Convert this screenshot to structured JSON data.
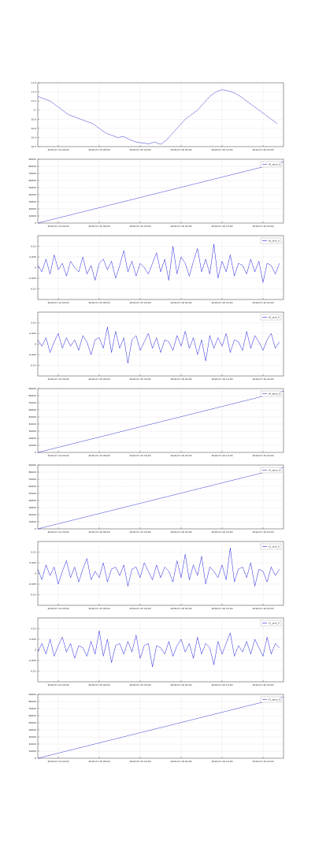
{
  "chart_data": [
    {
      "type": "line",
      "x": [
        0,
        1.5,
        3,
        4.5,
        6,
        7.5,
        9,
        10.5,
        12,
        13.5,
        15,
        16.5,
        18,
        19.5,
        21,
        22.5,
        24,
        25.5,
        27,
        28.5,
        30,
        31.5,
        33,
        34.5,
        36,
        37.5,
        39,
        40.5,
        42,
        43.5,
        45,
        46.5,
        48,
        49.5,
        51,
        52.5,
        54,
        55.5,
        57,
        58.5
      ],
      "series": [
        {
          "color": "#3a3ad6",
          "values": [
            11.3,
            11.25,
            11.2,
            11.1,
            11,
            10.9,
            10.85,
            10.8,
            10.75,
            10.7,
            10.6,
            10.5,
            10.45,
            10.4,
            10.42,
            10.35,
            10.3,
            10.28,
            10.26,
            10.3,
            10.25,
            10.35,
            10.5,
            10.65,
            10.8,
            10.9,
            11,
            11.15,
            11.3,
            11.4,
            11.45,
            11.42,
            11.38,
            11.3,
            11.2,
            11.1,
            11,
            10.9,
            10.8,
            10.7
          ]
        }
      ],
      "xlim": [
        0,
        60
      ],
      "xticks": [
        {
          "value": 5,
          "label": "2016-07-14 20:00"
        },
        {
          "value": 15,
          "label": "2016-07-15 06:00"
        },
        {
          "value": 25,
          "label": "2016-07-15 16:00"
        },
        {
          "value": 35,
          "label": "2016-07-16 02:00"
        },
        {
          "value": 45,
          "label": "2016-07-16 12:00"
        },
        {
          "value": 55,
          "label": "2016-07-16 22:00"
        }
      ],
      "ylim": [
        10.2,
        11.6
      ],
      "yticks": [
        10.2,
        10.4,
        10.6,
        10.8,
        11,
        11.2,
        11.4,
        11.6
      ],
      "grid": true
    },
    {
      "type": "line",
      "x": [
        0,
        60
      ],
      "series": [
        {
          "name": "t0_xpos_0",
          "color": "#3a3ad6",
          "values": [
            0,
            86400
          ]
        }
      ],
      "xlim": [
        0,
        60
      ],
      "xticks": [
        {
          "value": 5,
          "label": "2016-07-14 20:00"
        },
        {
          "value": 15,
          "label": "2016-07-15 06:00"
        },
        {
          "value": 25,
          "label": "2016-07-15 16:00"
        },
        {
          "value": 35,
          "label": "2016-07-16 02:00"
        },
        {
          "value": 45,
          "label": "2016-07-16 12:00"
        },
        {
          "value": 55,
          "label": "2016-07-16 22:00"
        }
      ],
      "ylim": [
        0,
        90000
      ],
      "yticks": [
        0,
        10000,
        20000,
        30000,
        40000,
        50000,
        60000,
        70000,
        80000,
        90000
      ],
      "grid": true,
      "legend": "upper right"
    },
    {
      "type": "line",
      "x": [
        0,
        1,
        2,
        3,
        4,
        5,
        6,
        7,
        8,
        9,
        10,
        11,
        12,
        13,
        14,
        15,
        16,
        17,
        18,
        19,
        20,
        21,
        22,
        23,
        24,
        25,
        26,
        27,
        28,
        29,
        30,
        31,
        32,
        33,
        34,
        35,
        36,
        37,
        38,
        39,
        40,
        41,
        42,
        43,
        44,
        45,
        46,
        47,
        48,
        49,
        50,
        51,
        52,
        53,
        54,
        55,
        56,
        57,
        58,
        59
      ],
      "series": [
        {
          "name": "t0_xrot_0",
          "color": "#2020e0",
          "values": [
            0.001,
            -0.002,
            0.004,
            -0.003,
            0.006,
            -0.001,
            0.002,
            -0.004,
            0.003,
            0,
            -0.002,
            0.005,
            -0.003,
            0.001,
            -0.006,
            0.002,
            0.004,
            -0.001,
            0.003,
            -0.005,
            0.001,
            0.008,
            -0.002,
            0.003,
            -0.004,
            0.002,
            0,
            -0.003,
            0.002,
            0.007,
            -0.002,
            0.004,
            -0.006,
            0.01,
            -0.003,
            0.005,
            0.002,
            -0.004,
            0.003,
            0.009,
            -0.002,
            0.004,
            -0.003,
            0.011,
            -0.005,
            0.003,
            -0.002,
            0.006,
            -0.004,
            0.002,
            0.001,
            -0.003,
            0.004,
            -0.002,
            0.003,
            -0.007,
            0.002,
            0.001,
            -0.003,
            0.002
          ]
        }
      ],
      "xlim": [
        0,
        60
      ],
      "xticks": [
        {
          "value": 5,
          "label": "2016-07-14 20:00"
        },
        {
          "value": 15,
          "label": "2016-07-15 06:00"
        },
        {
          "value": 25,
          "label": "2016-07-15 16:00"
        },
        {
          "value": 35,
          "label": "2016-07-16 02:00"
        },
        {
          "value": 45,
          "label": "2016-07-16 12:00"
        },
        {
          "value": 55,
          "label": "2016-07-16 22:00"
        }
      ],
      "ylim": [
        -0.015,
        0.015
      ],
      "yticks": [
        -0.01,
        -0.005,
        0,
        0.005,
        0.01
      ],
      "grid": true,
      "legend": "upper right"
    },
    {
      "type": "line",
      "x": [
        0,
        1,
        2,
        3,
        4,
        5,
        6,
        7,
        8,
        9,
        10,
        11,
        12,
        13,
        14,
        15,
        16,
        17,
        18,
        19,
        20,
        21,
        22,
        23,
        24,
        25,
        26,
        27,
        28,
        29,
        30,
        31,
        32,
        33,
        34,
        35,
        36,
        37,
        38,
        39,
        40,
        41,
        42,
        43,
        44,
        45,
        46,
        47,
        48,
        49,
        50,
        51,
        52,
        53,
        54,
        55,
        56,
        57,
        58,
        59
      ],
      "series": [
        {
          "name": "t0_yrot_0",
          "color": "#2020e0",
          "values": [
            0.002,
            -0.001,
            0.003,
            -0.004,
            0.001,
            0.005,
            -0.002,
            0.003,
            -0.001,
            0.002,
            -0.003,
            0.004,
            0.001,
            -0.005,
            0.002,
            0.003,
            -0.002,
            0.008,
            -0.004,
            0.006,
            -0.002,
            0.003,
            -0.009,
            0.002,
            0.004,
            -0.003,
            0.001,
            0.005,
            -0.002,
            0.003,
            -0.004,
            0.002,
            0.001,
            -0.003,
            0.004,
            -0.001,
            0.006,
            -0.002,
            0.003,
            -0.005,
            0.002,
            -0.008,
            0.004,
            -0.002,
            0.003,
            -0.001,
            0.005,
            -0.004,
            0.002,
            0.001,
            -0.003,
            0.006,
            -0.002,
            0.004,
            0.001,
            -0.003,
            0.002,
            0.005,
            -0.002,
            0.001
          ]
        }
      ],
      "xlim": [
        0,
        60
      ],
      "xticks": [
        {
          "value": 5,
          "label": "2016-07-14 20:00"
        },
        {
          "value": 15,
          "label": "2016-07-15 06:00"
        },
        {
          "value": 25,
          "label": "2016-07-15 16:00"
        },
        {
          "value": 35,
          "label": "2016-07-16 02:00"
        },
        {
          "value": 45,
          "label": "2016-07-16 12:00"
        },
        {
          "value": 55,
          "label": "2016-07-16 22:00"
        }
      ],
      "ylim": [
        -0.015,
        0.015
      ],
      "yticks": [
        -0.01,
        -0.005,
        0,
        0.005,
        0.01
      ],
      "grid": true,
      "legend": "upper right"
    },
    {
      "type": "line",
      "x": [
        0,
        60
      ],
      "series": [
        {
          "name": "t0_ypos_0",
          "color": "#3a3ad6",
          "values": [
            0,
            86400
          ]
        }
      ],
      "xlim": [
        0,
        60
      ],
      "xticks": [
        {
          "value": 5,
          "label": "2016-07-14 20:00"
        },
        {
          "value": 15,
          "label": "2016-07-15 06:00"
        },
        {
          "value": 25,
          "label": "2016-07-15 16:00"
        },
        {
          "value": 35,
          "label": "2016-07-16 02:00"
        },
        {
          "value": 45,
          "label": "2016-07-16 12:00"
        },
        {
          "value": 55,
          "label": "2016-07-16 22:00"
        }
      ],
      "ylim": [
        0,
        90000
      ],
      "yticks": [
        0,
        10000,
        20000,
        30000,
        40000,
        50000,
        60000,
        70000,
        80000,
        90000
      ],
      "grid": true,
      "legend": "upper right"
    },
    {
      "type": "line",
      "x": [
        0,
        60
      ],
      "series": [
        {
          "name": "t1_xpos_0",
          "color": "#3a3ad6",
          "values": [
            0,
            86400
          ]
        }
      ],
      "xlim": [
        0,
        60
      ],
      "xticks": [
        {
          "value": 5,
          "label": "2016-07-14 20:00"
        },
        {
          "value": 15,
          "label": "2016-07-15 06:00"
        },
        {
          "value": 25,
          "label": "2016-07-15 16:00"
        },
        {
          "value": 35,
          "label": "2016-07-16 02:00"
        },
        {
          "value": 45,
          "label": "2016-07-16 12:00"
        },
        {
          "value": 55,
          "label": "2016-07-16 22:00"
        }
      ],
      "ylim": [
        0,
        90000
      ],
      "yticks": [
        0,
        10000,
        20000,
        30000,
        40000,
        50000,
        60000,
        70000,
        80000,
        90000
      ],
      "grid": true,
      "legend": "upper right"
    },
    {
      "type": "line",
      "x": [
        0,
        1,
        2,
        3,
        4,
        5,
        6,
        7,
        8,
        9,
        10,
        11,
        12,
        13,
        14,
        15,
        16,
        17,
        18,
        19,
        20,
        21,
        22,
        23,
        24,
        25,
        26,
        27,
        28,
        29,
        30,
        31,
        32,
        33,
        34,
        35,
        36,
        37,
        38,
        39,
        40,
        41,
        42,
        43,
        44,
        45,
        46,
        47,
        48,
        49,
        50,
        51,
        52,
        53,
        54,
        55,
        56,
        57,
        58,
        59
      ],
      "series": [
        {
          "name": "t1_xrot_0",
          "color": "#2020e0",
          "values": [
            0.002,
            -0.003,
            0.004,
            -0.001,
            0.003,
            -0.005,
            0.001,
            0.006,
            -0.002,
            0.003,
            -0.004,
            0.002,
            0.007,
            -0.003,
            0.001,
            -0.002,
            0.005,
            -0.004,
            0.002,
            0.003,
            -0.001,
            0.004,
            -0.006,
            0.002,
            0.003,
            -0.002,
            0.005,
            0.001,
            -0.003,
            0.004,
            -0.002,
            0.003,
            0.001,
            -0.004,
            0.006,
            -0.002,
            0.009,
            -0.003,
            0.004,
            -0.001,
            0.008,
            -0.005,
            0.003,
            0.001,
            -0.002,
            0.004,
            -0.003,
            0.012,
            -0.004,
            0.002,
            0.003,
            -0.002,
            0.005,
            -0.006,
            0.002,
            0.001,
            -0.004,
            0.003,
            -0.001,
            0.002
          ]
        }
      ],
      "xlim": [
        0,
        60
      ],
      "xticks": [
        {
          "value": 5,
          "label": "2016-07-14 20:00"
        },
        {
          "value": 15,
          "label": "2016-07-15 06:00"
        },
        {
          "value": 25,
          "label": "2016-07-15 16:00"
        },
        {
          "value": 35,
          "label": "2016-07-16 02:00"
        },
        {
          "value": 45,
          "label": "2016-07-16 12:00"
        },
        {
          "value": 55,
          "label": "2016-07-16 22:00"
        }
      ],
      "ylim": [
        -0.015,
        0.015
      ],
      "yticks": [
        -0.01,
        -0.005,
        0,
        0.005,
        0.01
      ],
      "grid": true,
      "legend": "upper right"
    },
    {
      "type": "line",
      "x": [
        0,
        1,
        2,
        3,
        4,
        5,
        6,
        7,
        8,
        9,
        10,
        11,
        12,
        13,
        14,
        15,
        16,
        17,
        18,
        19,
        20,
        21,
        22,
        23,
        24,
        25,
        26,
        27,
        28,
        29,
        30,
        31,
        32,
        33,
        34,
        35,
        36,
        37,
        38,
        39,
        40,
        41,
        42,
        43,
        44,
        45,
        46,
        47,
        48,
        49,
        50,
        51,
        52,
        53,
        54,
        55,
        56,
        57,
        58,
        59
      ],
      "series": [
        {
          "name": "t1_yrot_0",
          "color": "#2020e0",
          "values": [
            -0.001,
            0.003,
            -0.002,
            0.005,
            -0.003,
            0.002,
            0.006,
            -0.001,
            0.003,
            -0.004,
            0.002,
            0.001,
            -0.003,
            0.004,
            -0.002,
            0.009,
            -0.003,
            0.005,
            -0.006,
            0.002,
            0.003,
            -0.002,
            0.004,
            -0.001,
            0.007,
            -0.004,
            0.002,
            0.003,
            -0.008,
            0.002,
            0.001,
            -0.002,
            0.004,
            -0.003,
            0.002,
            0.005,
            -0.001,
            0.003,
            -0.004,
            0.006,
            -0.002,
            0.003,
            0.001,
            -0.007,
            0.004,
            -0.002,
            0.003,
            0.008,
            -0.003,
            0.002,
            -0.001,
            0.004,
            -0.002,
            0.005,
            0.001,
            -0.003,
            0.006,
            -0.002,
            0.003,
            0.001
          ]
        }
      ],
      "xlim": [
        0,
        60
      ],
      "xticks": [
        {
          "value": 5,
          "label": "2016-07-14 20:00"
        },
        {
          "value": 15,
          "label": "2016-07-15 06:00"
        },
        {
          "value": 25,
          "label": "2016-07-15 16:00"
        },
        {
          "value": 35,
          "label": "2016-07-16 02:00"
        },
        {
          "value": 45,
          "label": "2016-07-16 12:00"
        },
        {
          "value": 55,
          "label": "2016-07-16 22:00"
        }
      ],
      "ylim": [
        -0.015,
        0.015
      ],
      "yticks": [
        -0.01,
        -0.005,
        0,
        0.005,
        0.01
      ],
      "grid": true,
      "legend": "upper right"
    },
    {
      "type": "line",
      "x": [
        0,
        60
      ],
      "series": [
        {
          "name": "t1_ypos_0",
          "color": "#3a3ad6",
          "values": [
            0,
            86400
          ]
        }
      ],
      "xlim": [
        0,
        60
      ],
      "xticks": [
        {
          "value": 5,
          "label": "2016-07-14 20:00"
        },
        {
          "value": 15,
          "label": "2016-07-15 06:00"
        },
        {
          "value": 25,
          "label": "2016-07-15 16:00"
        },
        {
          "value": 35,
          "label": "2016-07-16 02:00"
        },
        {
          "value": 45,
          "label": "2016-07-16 12:00"
        },
        {
          "value": 55,
          "label": "2016-07-16 22:00"
        }
      ],
      "ylim": [
        0,
        90000
      ],
      "yticks": [
        0,
        10000,
        20000,
        30000,
        40000,
        50000,
        60000,
        70000,
        80000,
        90000
      ],
      "grid": true,
      "legend": "upper right"
    }
  ]
}
